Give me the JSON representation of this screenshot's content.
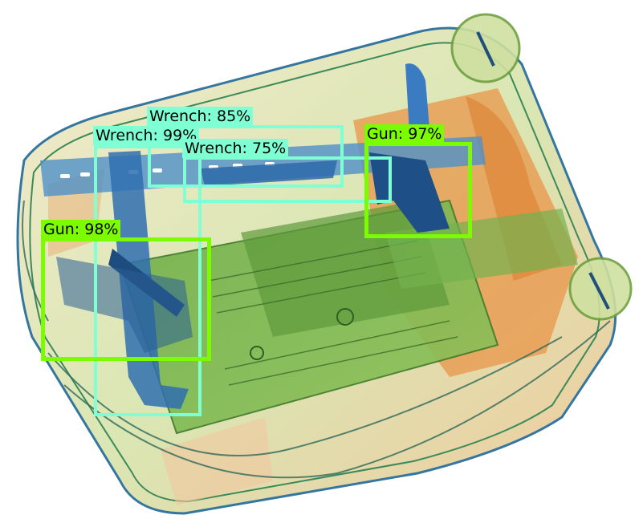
{
  "image": {
    "subject": "x-ray-scan-luggage",
    "colors": {
      "organic": "#e8964a",
      "inorganic": "#5aa44a",
      "metal": "#2f6fb0",
      "wrench_box": "#7fffd4",
      "gun_box": "#7cfc00"
    }
  },
  "detections": [
    {
      "label": "Wrench: 85%",
      "class": "wrench"
    },
    {
      "label": "Wrench: 99%",
      "class": "wrench"
    },
    {
      "label": "Wrench: 75%",
      "class": "wrench"
    },
    {
      "label": "Gun: 97%",
      "class": "gun"
    },
    {
      "label": "Gun: 98%",
      "class": "gun"
    }
  ]
}
